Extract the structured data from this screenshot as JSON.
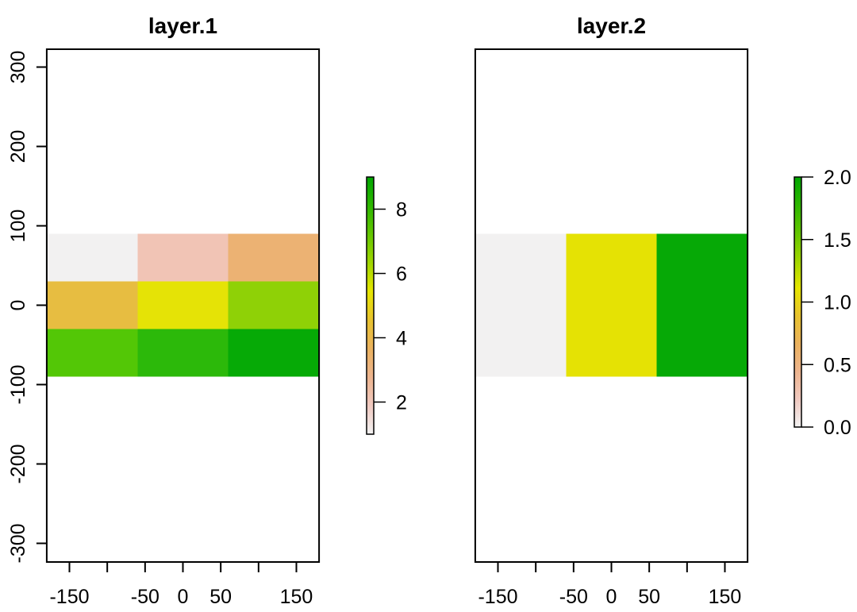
{
  "figure": {
    "background": "#ffffff",
    "text_color": "#000000",
    "palette_name": "terrain-colors-reversed",
    "palette_stops": [
      "#F2F2F2",
      "#F0C9C0",
      "#EDB48E",
      "#EBB25E",
      "#E8C32E",
      "#E6E600",
      "#A0D600",
      "#63C600",
      "#2DB600",
      "#00A600"
    ]
  },
  "chart_data": [
    {
      "type": "heatmap",
      "title": "layer.1",
      "extent": {
        "xmin": -180,
        "xmax": 180,
        "ymin": -90,
        "ymax": 90
      },
      "ncols": 3,
      "nrows": 3,
      "values": [
        [
          1,
          2,
          3
        ],
        [
          4,
          5,
          6
        ],
        [
          7,
          8,
          9
        ]
      ],
      "cell_colors": [
        [
          "#F2F1F1",
          "#F1C4B5",
          "#ECB273"
        ],
        [
          "#E7BD41",
          "#E5E306",
          "#8FD106"
        ],
        [
          "#53C706",
          "#2CB90A",
          "#06AA06"
        ]
      ],
      "x_axis": {
        "tick_values_labeled": [
          -150,
          -50,
          0,
          50,
          150
        ],
        "tick_labels": [
          "-150",
          "-50",
          "0",
          "50",
          "150"
        ],
        "tick_values_minor": [
          -100,
          100
        ]
      },
      "y_axis": {
        "tick_values": [
          300,
          200,
          100,
          0,
          -100,
          -200,
          -300
        ],
        "tick_labels": [
          "300",
          "200",
          "100",
          "0",
          "-100",
          "-200",
          "-300"
        ]
      },
      "legend": {
        "min": 1,
        "max": 9,
        "tick_values": [
          2,
          4,
          6,
          8
        ],
        "tick_labels": [
          "2",
          "4",
          "6",
          "8"
        ],
        "end_ticks": false
      }
    },
    {
      "type": "heatmap",
      "title": "layer.2",
      "extent": {
        "xmin": -180,
        "xmax": 180,
        "ymin": -90,
        "ymax": 90
      },
      "ncols": 3,
      "nrows": 1,
      "values": [
        [
          0,
          1,
          2
        ]
      ],
      "cell_colors": [
        [
          "#F2F1F1",
          "#E5E204",
          "#06A906"
        ]
      ],
      "x_axis": {
        "tick_values_labeled": [
          -150,
          -50,
          0,
          50,
          150
        ],
        "tick_labels": [
          "-150",
          "-50",
          "0",
          "50",
          "150"
        ],
        "tick_values_minor": [
          -100,
          100
        ]
      },
      "y_axis": {
        "tick_values": [],
        "tick_labels": []
      },
      "legend": {
        "min": 0,
        "max": 2,
        "tick_values": [
          0,
          0.5,
          1,
          1.5,
          2
        ],
        "tick_labels": [
          "0.0",
          "0.5",
          "1.0",
          "1.5",
          "2.0"
        ],
        "end_ticks": true
      }
    }
  ]
}
